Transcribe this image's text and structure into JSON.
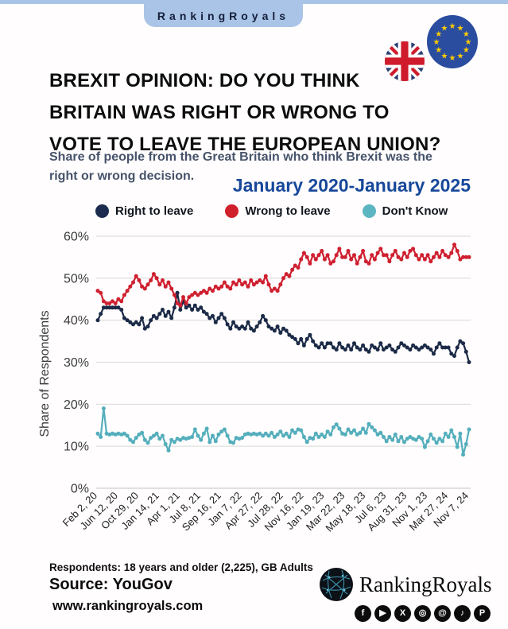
{
  "banner": {
    "brand": "RankingRoyals"
  },
  "header": {
    "title": "BREXIT OPINION: DO YOU THINK\nBRITAIN WAS RIGHT OR WRONG TO\nVOTE TO LEAVE THE EUROPEAN UNION?",
    "subtitle": "Share of people from the Great Britain who think Brexit was the\nright or wrong decision.",
    "date_range": "January 2020-January 2025"
  },
  "legend": [
    {
      "label": "Right to leave",
      "color": "#1b2c4e"
    },
    {
      "label": "Wrong to leave",
      "color": "#d0202c"
    },
    {
      "label": "Don't Know",
      "color": "#5cb6c2"
    }
  ],
  "chart_data": {
    "type": "line",
    "ylabel": "Share of Respondents",
    "ylim": [
      0,
      60
    ],
    "y_ticks": [
      0,
      10,
      20,
      30,
      40,
      50,
      60
    ],
    "y_tick_suffix": "%",
    "grid": true,
    "x_labels": [
      "Feb 2, 20",
      "Jun 12, 20",
      "Oct 29, 20",
      "Jan 14, 21",
      "Apr 1, 21",
      "Jul 8, 21",
      "Sep 16, 21",
      "Jan 7, 22",
      "Apr 27, 22",
      "Jul 28, 22",
      "Nov 16, 22",
      "Jan 19, 23",
      "Mar 22, 23",
      "May 18, 23",
      "Jul 6, 23",
      "Aug 31, 23",
      "Nov 1, 23",
      "Mar 27, 24",
      "Nov 7, 24"
    ],
    "label_every": 7,
    "series": [
      {
        "name": "Right to leave",
        "color": "#1b2a47",
        "values": [
          40,
          41.5,
          43,
          43,
          43,
          43,
          43,
          43,
          42.5,
          40.5,
          40,
          39.5,
          39,
          39.5,
          39,
          40.5,
          38,
          38.5,
          40,
          41,
          40.5,
          41.5,
          42.5,
          41,
          42,
          40.5,
          43,
          46.5,
          42.5,
          44.5,
          43,
          43.5,
          42.5,
          43.5,
          42.5,
          43,
          42,
          41.5,
          40.5,
          41,
          39.5,
          40.5,
          41.5,
          40.5,
          39,
          38,
          39.5,
          38.5,
          38,
          38.5,
          38,
          39.5,
          38,
          37.5,
          38.5,
          39.5,
          41,
          40,
          38.5,
          38,
          37.5,
          38.5,
          37,
          38,
          37.5,
          36.5,
          36,
          35.5,
          34.5,
          35.5,
          34,
          35.5,
          36.5,
          35,
          34,
          33.5,
          34.5,
          33.5,
          34.5,
          34.5,
          33.5,
          33,
          34.5,
          33.5,
          33,
          34,
          33,
          34.5,
          33.5,
          33,
          34,
          33,
          32.5,
          34,
          33.5,
          33,
          34.5,
          33,
          33.5,
          34,
          33,
          32.5,
          33.5,
          34.5,
          34,
          33.5,
          33,
          34,
          33.5,
          33,
          33.5,
          34,
          33.5,
          33,
          32,
          33.5,
          34.5,
          33.5,
          33.5,
          33.5,
          32,
          31.5,
          33.5,
          35,
          34.5,
          32.5,
          30
        ]
      },
      {
        "name": "Wrong to leave",
        "color": "#cf2030",
        "values": [
          47,
          46.5,
          44.5,
          44,
          44,
          44.5,
          44,
          45,
          44.5,
          46,
          47,
          48,
          49,
          50.5,
          49.5,
          48,
          47.5,
          48.5,
          49.5,
          51,
          50,
          48.5,
          49.5,
          48,
          49,
          47.5,
          46,
          44,
          43.5,
          45.5,
          44,
          45.5,
          46,
          46.5,
          46,
          46.5,
          47,
          46.5,
          47.5,
          47,
          48,
          47.5,
          48,
          49,
          48,
          47.5,
          49,
          48.5,
          49.5,
          48.5,
          49,
          48,
          49.5,
          48.5,
          49,
          49.5,
          49,
          50.5,
          48.5,
          47,
          47.5,
          47,
          48.5,
          50,
          51,
          50.5,
          52,
          53,
          52.5,
          54.5,
          56,
          55,
          53.5,
          55.5,
          54.5,
          55.5,
          56.5,
          54.5,
          55.5,
          53.5,
          54,
          55.5,
          57,
          55,
          55,
          56.5,
          54.5,
          55.5,
          53.5,
          55,
          56.5,
          54,
          53.5,
          55.5,
          54.5,
          56,
          57,
          55.5,
          55.5,
          54,
          55.5,
          56.5,
          55,
          54.5,
          56,
          55,
          56.5,
          57,
          55.5,
          54.5,
          55.5,
          54.5,
          55.5,
          54,
          55,
          56,
          55,
          56.5,
          55.5,
          55,
          56,
          58,
          56.5,
          54.5,
          55,
          55,
          55
        ]
      },
      {
        "name": "Don't Know",
        "color": "#54aebc",
        "values": [
          13,
          12.2,
          19,
          13,
          12.8,
          13,
          12.8,
          13,
          12.8,
          13,
          12.5,
          11.5,
          11,
          12,
          12.8,
          13.2,
          11.5,
          10.8,
          12,
          12.5,
          13,
          11.8,
          12.5,
          10.5,
          9,
          11.5,
          11,
          11.8,
          11.5,
          12,
          11.8,
          12,
          12.2,
          14,
          12.5,
          11.5,
          13,
          14.2,
          11,
          12.5,
          11.2,
          12.8,
          13.5,
          14,
          12.5,
          11,
          10.8,
          12,
          11.8,
          12,
          12.8,
          13,
          12.8,
          13,
          12.8,
          13,
          12.5,
          13,
          12.5,
          13.2,
          12.2,
          12.8,
          13.5,
          12.5,
          13,
          12.2,
          13.8,
          13.2,
          14,
          13.8,
          12.2,
          11,
          12,
          11.8,
          13,
          12.2,
          12.8,
          12.2,
          13.5,
          12.8,
          14.5,
          15.2,
          14.2,
          13,
          12.8,
          14,
          13.2,
          13.8,
          12.8,
          13.2,
          14.2,
          13.2,
          15.3,
          14.5,
          13.8,
          12.8,
          13.2,
          12.2,
          11.2,
          12.2,
          11.5,
          12.8,
          11.2,
          12.2,
          11,
          11.8,
          12.2,
          11.8,
          11.5,
          12.2,
          11.8,
          9.8,
          11.2,
          12.8,
          11.8,
          10.8,
          11.8,
          11.2,
          13,
          12.2,
          13.8,
          12.2,
          9.8,
          13,
          8,
          10.5,
          14
        ]
      }
    ]
  },
  "footer": {
    "respondents": "Respondents: 18 years and older (2,225), GB Adults",
    "source": "Source: YouGov",
    "website": "www.rankingroyals.com",
    "brand": "RankingRoyals",
    "social": [
      {
        "name": "facebook-icon",
        "glyph": "f"
      },
      {
        "name": "youtube-icon",
        "glyph": "▶"
      },
      {
        "name": "x-icon",
        "glyph": "X"
      },
      {
        "name": "instagram-icon",
        "glyph": "◎"
      },
      {
        "name": "threads-icon",
        "glyph": "@"
      },
      {
        "name": "tiktok-icon",
        "glyph": "♪"
      },
      {
        "name": "pinterest-icon",
        "glyph": "P"
      }
    ]
  },
  "colors": {
    "banner_blue": "#a9c4e6",
    "date_blue": "#17489a",
    "grid": "#d8d8d8",
    "axis_text": "#3c3c3c",
    "x_label_text": "#1f1f1f"
  }
}
